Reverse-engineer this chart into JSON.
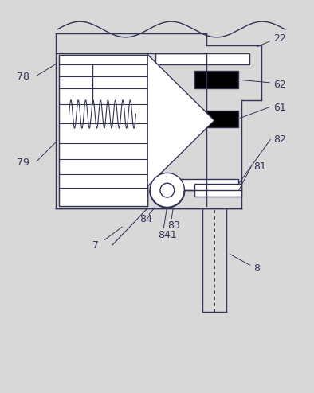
{
  "bg_color": "#d8d8d8",
  "line_color": "#333355",
  "fig_width": 3.94,
  "fig_height": 4.94,
  "dpi": 100
}
